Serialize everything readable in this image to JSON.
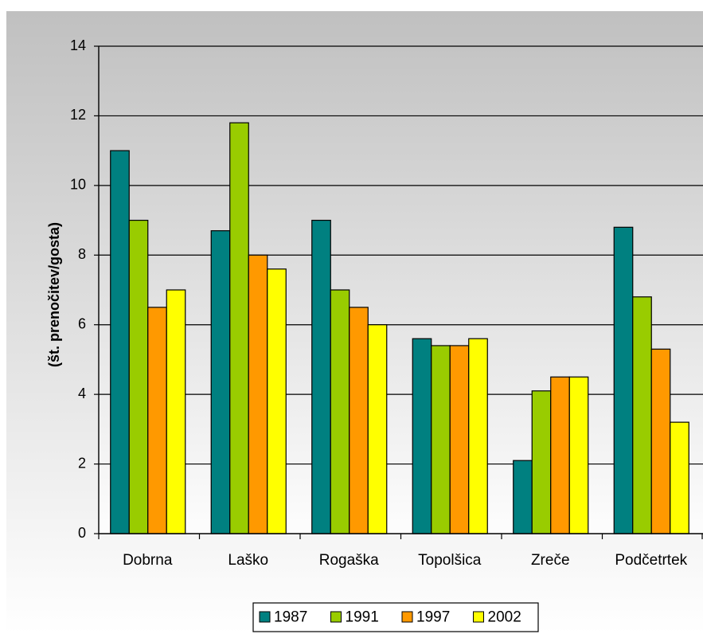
{
  "chart_data": {
    "type": "bar",
    "title": "",
    "xlabel": "",
    "ylabel": "(št. prenočitev/gosta)",
    "ylim": [
      0,
      14
    ],
    "yticks": [
      0,
      2,
      4,
      6,
      8,
      10,
      12,
      14
    ],
    "grid": true,
    "legend_position": "bottom",
    "categories": [
      "Dobrna",
      "Laško",
      "Rogaška",
      "Topolšica",
      "Zreče",
      "Podčetrtek"
    ],
    "series": [
      {
        "name": "1987",
        "color": "#008080",
        "values": [
          11.0,
          8.7,
          9.0,
          5.6,
          2.1,
          8.8
        ]
      },
      {
        "name": "1991",
        "color": "#99CC00",
        "values": [
          9.0,
          11.8,
          7.0,
          5.4,
          4.1,
          6.8
        ]
      },
      {
        "name": "1997",
        "color": "#FF9900",
        "values": [
          6.5,
          8.0,
          6.5,
          5.4,
          4.5,
          5.3
        ]
      },
      {
        "name": "2002",
        "color": "#FFFF00",
        "values": [
          7.0,
          7.6,
          6.0,
          5.6,
          4.5,
          3.2
        ]
      }
    ]
  }
}
